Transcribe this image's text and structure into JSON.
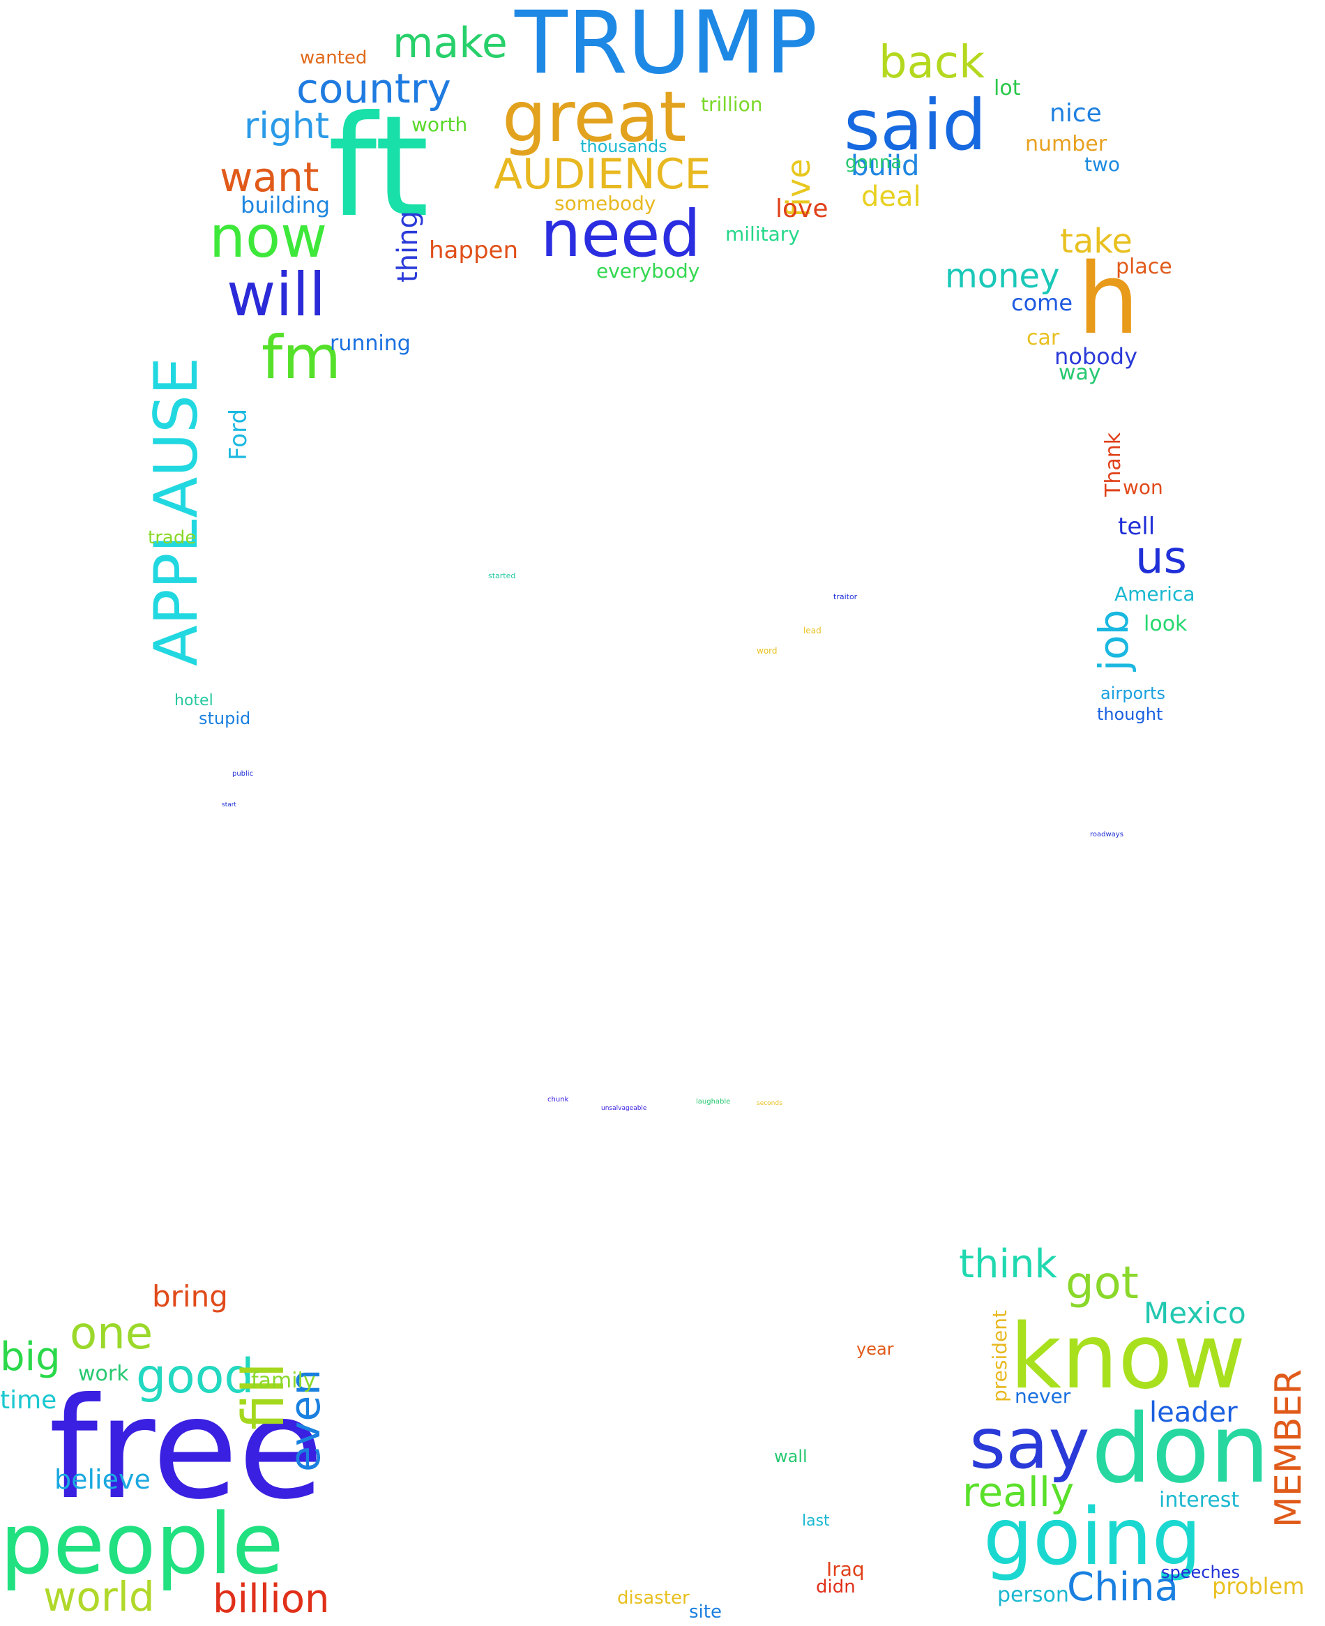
{
  "words": [
    {
      "text": "TRUMP",
      "color": "#1e88e5"
    },
    {
      "text": "ft",
      "color": "#19e0a8"
    },
    {
      "text": "great",
      "color": "#e2a21e"
    },
    {
      "text": "said",
      "color": "#1769e0"
    },
    {
      "text": "AUDIENCE",
      "color": "#e8b820"
    },
    {
      "text": "need",
      "color": "#2b2ee0"
    },
    {
      "text": "country",
      "color": "#1f7be0"
    },
    {
      "text": "make",
      "color": "#27d06a"
    },
    {
      "text": "back",
      "color": "#b4d81e"
    },
    {
      "text": "right",
      "color": "#2a9ae8"
    },
    {
      "text": "want",
      "color": "#e05a1a"
    },
    {
      "text": "now",
      "color": "#3ee83a"
    },
    {
      "text": "will",
      "color": "#2a2ad8"
    },
    {
      "text": "fm",
      "color": "#55e02a"
    },
    {
      "text": "APPLAUSE",
      "color": "#22d8e0"
    },
    {
      "text": "build",
      "color": "#1f86e0"
    },
    {
      "text": "five",
      "color": "#e8c820"
    },
    {
      "text": "deal",
      "color": "#e8d020"
    },
    {
      "text": "love",
      "color": "#e0401a"
    },
    {
      "text": "military",
      "color": "#26d88a"
    },
    {
      "text": "money",
      "color": "#1ac8b8"
    },
    {
      "text": "take",
      "color": "#e8c020"
    },
    {
      "text": "h",
      "color": "#e89a1a"
    },
    {
      "text": "nice",
      "color": "#1f80e0"
    },
    {
      "text": "lot",
      "color": "#2ac84a"
    },
    {
      "text": "number",
      "color": "#e8a020"
    },
    {
      "text": "two",
      "color": "#1a8ae0"
    },
    {
      "text": "happen",
      "color": "#e0501a"
    },
    {
      "text": "building",
      "color": "#1f86e0"
    },
    {
      "text": "thing",
      "color": "#2a3ad8"
    },
    {
      "text": "somebody",
      "color": "#e8b820"
    },
    {
      "text": "everybody",
      "color": "#32d850"
    },
    {
      "text": "worth",
      "color": "#5ad82a"
    },
    {
      "text": "trillion",
      "color": "#7ad82a"
    },
    {
      "text": "thousands",
      "color": "#1ab8d0"
    },
    {
      "text": "running",
      "color": "#1a70e0"
    },
    {
      "text": "nobody",
      "color": "#2a3ad8"
    },
    {
      "text": "come",
      "color": "#1f5ae0"
    },
    {
      "text": "tell",
      "color": "#2030d8"
    },
    {
      "text": "us",
      "color": "#2030d8"
    },
    {
      "text": "job",
      "color": "#1ab8e0"
    },
    {
      "text": "America",
      "color": "#1ab8d0"
    },
    {
      "text": "look",
      "color": "#26d870"
    },
    {
      "text": "Thank",
      "color": "#e0401a"
    },
    {
      "text": "won",
      "color": "#e04a1a"
    },
    {
      "text": "airports",
      "color": "#1aa0e0"
    },
    {
      "text": "thought",
      "color": "#1a60e0"
    },
    {
      "text": "place",
      "color": "#e05a1a"
    },
    {
      "text": "Ford",
      "color": "#1ab8e0"
    },
    {
      "text": "trade",
      "color": "#8ad82a"
    },
    {
      "text": "wanted",
      "color": "#e06a1a"
    },
    {
      "text": "gonna",
      "color": "#26c870"
    },
    {
      "text": "car",
      "color": "#e8c020"
    },
    {
      "text": "way",
      "color": "#26c870"
    },
    {
      "text": "stupid",
      "color": "#1a80e0"
    },
    {
      "text": "hotel",
      "color": "#26c8a0"
    },
    {
      "text": "people",
      "color": "#20e080"
    },
    {
      "text": "free",
      "color": "#3a20e0"
    },
    {
      "text": "good",
      "color": "#22d8c0"
    },
    {
      "text": "one",
      "color": "#9ad82a"
    },
    {
      "text": "big",
      "color": "#2ad84a"
    },
    {
      "text": "world",
      "color": "#b0d82a"
    },
    {
      "text": "billion",
      "color": "#e0301a"
    },
    {
      "text": "fill",
      "color": "#a4d81e"
    },
    {
      "text": "even",
      "color": "#1a80e0"
    },
    {
      "text": "bring",
      "color": "#e04a1a"
    },
    {
      "text": "time",
      "color": "#1ac8d0"
    },
    {
      "text": "believe",
      "color": "#1aa8e0"
    },
    {
      "text": "family",
      "color": "#8ad82a"
    },
    {
      "text": "work",
      "color": "#26c870"
    },
    {
      "text": "know",
      "color": "#a8e01e"
    },
    {
      "text": "don",
      "color": "#26d8a0"
    },
    {
      "text": "going",
      "color": "#1ad8d0"
    },
    {
      "text": "say",
      "color": "#2a3ad8"
    },
    {
      "text": "really",
      "color": "#5ae02a"
    },
    {
      "text": "think",
      "color": "#20d8b0"
    },
    {
      "text": "got",
      "color": "#8ad82a"
    },
    {
      "text": "Mexico",
      "color": "#22c8b0"
    },
    {
      "text": "leader",
      "color": "#1a60e0"
    },
    {
      "text": "MEMBER",
      "color": "#e05a1a"
    },
    {
      "text": "China",
      "color": "#1a80e0"
    },
    {
      "text": "problem",
      "color": "#e8c020"
    },
    {
      "text": "interest",
      "color": "#1ab8d0"
    },
    {
      "text": "person",
      "color": "#1ab8d0"
    },
    {
      "text": "never",
      "color": "#1a70e0"
    },
    {
      "text": "president",
      "color": "#e8b820"
    },
    {
      "text": "speeches",
      "color": "#2030d8"
    },
    {
      "text": "Iraq",
      "color": "#e0401a"
    },
    {
      "text": "didn",
      "color": "#e0301a"
    },
    {
      "text": "disaster",
      "color": "#e8c020"
    },
    {
      "text": "site",
      "color": "#1a80e0"
    },
    {
      "text": "year",
      "color": "#e05a1a"
    },
    {
      "text": "wall",
      "color": "#26c870"
    },
    {
      "text": "last",
      "color": "#1ab8d0"
    },
    {
      "text": "chunk",
      "color": "#3a20e0"
    },
    {
      "text": "laughable",
      "color": "#26c870"
    },
    {
      "text": "unsalvageable",
      "color": "#3a20e0"
    },
    {
      "text": "seconds",
      "color": "#e8c020"
    },
    {
      "text": "started",
      "color": "#26c8a0"
    },
    {
      "text": "traitor",
      "color": "#2030d8"
    },
    {
      "text": "lead",
      "color": "#e8c020"
    },
    {
      "text": "word",
      "color": "#e8c020"
    },
    {
      "text": "roadways",
      "color": "#2030d8"
    },
    {
      "text": "public",
      "color": "#2030d8"
    },
    {
      "text": "start",
      "color": "#2030d8"
    }
  ]
}
